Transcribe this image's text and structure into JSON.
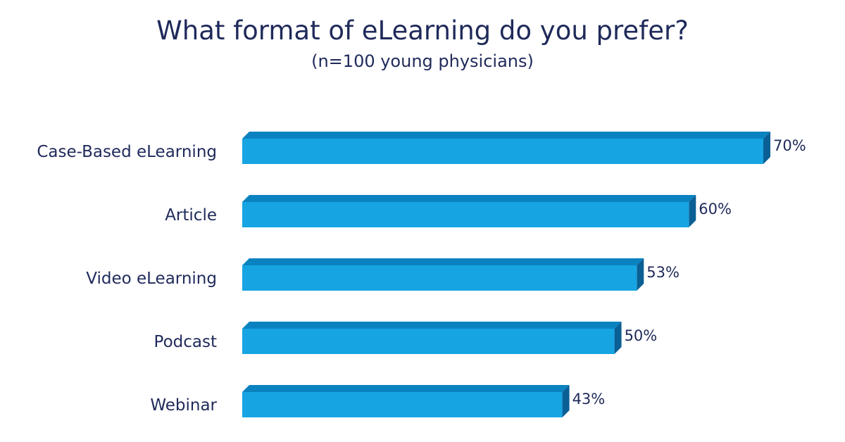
{
  "chart_data": {
    "type": "bar",
    "orientation": "horizontal",
    "title": "What format of eLearning do you prefer?",
    "subtitle": "(n=100 young physicians)",
    "categories": [
      "Case-Based eLearning",
      "Article",
      "Video eLearning",
      "Podcast",
      "Webinar"
    ],
    "values": [
      70,
      60,
      53,
      50,
      43
    ],
    "value_labels": [
      "70%",
      "60%",
      "53%",
      "50%",
      "43%"
    ],
    "unit": "%",
    "xlim": [
      0,
      70
    ],
    "grid": false,
    "legend": "none",
    "bar_color": "#16a4e2",
    "bar_top_color": "#0b82c0",
    "bar_side_color": "#0a5f95"
  }
}
